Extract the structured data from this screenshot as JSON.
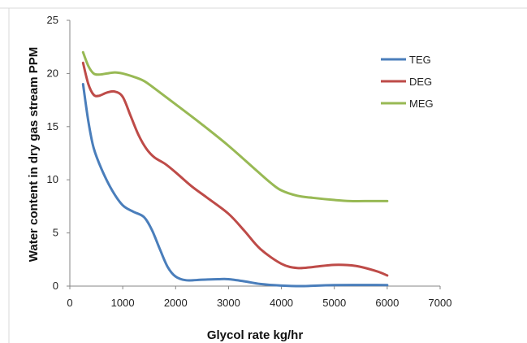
{
  "chart_data": {
    "type": "line",
    "title": "",
    "xlabel": "Glycol rate kg/hr",
    "ylabel": "Water content in dry gas stream PPM",
    "xlim": [
      0,
      7000
    ],
    "ylim": [
      0,
      25
    ],
    "xticks": [
      0,
      1000,
      2000,
      3000,
      4000,
      5000,
      6000,
      7000
    ],
    "yticks": [
      0,
      5,
      10,
      15,
      20,
      25
    ],
    "grid": false,
    "legend_position": "top-right",
    "series": [
      {
        "name": "TEG",
        "color": "#4a7ebb",
        "x": [
          250,
          350,
          450,
          600,
          800,
          1000,
          1200,
          1400,
          1550,
          1700,
          1850,
          2000,
          2200,
          2500,
          2800,
          3000,
          3300,
          3600,
          4000,
          4400,
          5000,
          6000
        ],
        "values": [
          19,
          15.5,
          13,
          11,
          9,
          7.6,
          7,
          6.5,
          5.3,
          3.5,
          1.8,
          0.9,
          0.55,
          0.6,
          0.65,
          0.65,
          0.45,
          0.2,
          0.05,
          0.0,
          0.1,
          0.1
        ]
      },
      {
        "name": "DEG",
        "color": "#be4b48",
        "x": [
          250,
          350,
          450,
          550,
          700,
          850,
          1000,
          1150,
          1300,
          1450,
          1600,
          1800,
          2000,
          2300,
          2600,
          3000,
          3300,
          3600,
          4000,
          4300,
          4600,
          5000,
          5400,
          5800,
          6000
        ],
        "values": [
          21,
          19,
          18,
          17.9,
          18.2,
          18.3,
          17.8,
          16,
          14.2,
          12.9,
          12.1,
          11.5,
          10.7,
          9.4,
          8.3,
          6.8,
          5.2,
          3.5,
          2.1,
          1.7,
          1.8,
          2.0,
          1.9,
          1.4,
          1.0
        ]
      },
      {
        "name": "MEG",
        "color": "#98b954",
        "x": [
          250,
          350,
          450,
          550,
          700,
          850,
          1000,
          1200,
          1400,
          1600,
          2000,
          2500,
          3000,
          3500,
          3800,
          4000,
          4300,
          4600,
          5000,
          5300,
          5700,
          6000
        ],
        "values": [
          22,
          20.7,
          20,
          19.9,
          20,
          20.1,
          20,
          19.7,
          19.3,
          18.6,
          17.1,
          15.2,
          13.2,
          11,
          9.7,
          9,
          8.5,
          8.3,
          8.1,
          8.0,
          8.0,
          8.0
        ]
      }
    ]
  }
}
